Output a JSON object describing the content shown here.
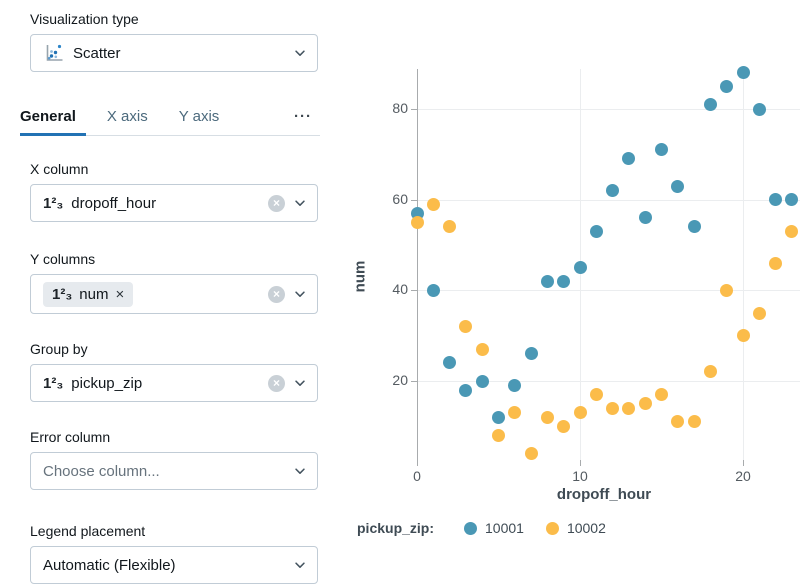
{
  "sidebar": {
    "visualization_type": {
      "label": "Visualization type",
      "value": "Scatter"
    },
    "tabs": [
      {
        "label": "General",
        "active": true
      },
      {
        "label": "X axis",
        "active": false
      },
      {
        "label": "Y axis",
        "active": false
      },
      {
        "label": "···",
        "active": false
      }
    ],
    "fields": {
      "x_column": {
        "label": "X column",
        "value": "dropoff_hour"
      },
      "y_columns": {
        "label": "Y columns",
        "chip": "num"
      },
      "group_by": {
        "label": "Group by",
        "value": "pickup_zip"
      },
      "error_column": {
        "label": "Error column",
        "placeholder": "Choose column..."
      },
      "legend_placement": {
        "label": "Legend placement",
        "value": "Automatic (Flexible)"
      }
    },
    "icons": {
      "number_type": "1²₃",
      "clear": "×",
      "chip_remove": "×",
      "more_tabs": "···"
    }
  },
  "colors": {
    "accent_blue": "#2272B4",
    "series_blue": "#4a98b5",
    "series_yellow": "#fbbc4a",
    "gridline": "#ebedef",
    "axis_line": "#a8abad"
  },
  "chart_data": {
    "type": "scatter",
    "title": "",
    "xlabel": "dropoff_hour",
    "ylabel": "num",
    "x_ticks": [
      0,
      10,
      20
    ],
    "y_ticks": [
      20,
      40,
      60,
      80
    ],
    "xlim": [
      -0.8,
      23.8
    ],
    "ylim": [
      2.5,
      89
    ],
    "grid": true,
    "legend_title": "pickup_zip:",
    "legend_position": "bottom",
    "series": [
      {
        "name": "10001",
        "color": "#4a98b5",
        "points": [
          [
            0,
            57
          ],
          [
            1,
            40
          ],
          [
            2,
            24
          ],
          [
            3,
            18
          ],
          [
            4,
            20
          ],
          [
            5,
            12
          ],
          [
            6,
            19
          ],
          [
            7,
            26
          ],
          [
            8,
            42
          ],
          [
            9,
            42
          ],
          [
            10,
            45
          ],
          [
            11,
            53
          ],
          [
            12,
            62
          ],
          [
            13,
            69
          ],
          [
            14,
            56
          ],
          [
            15,
            71
          ],
          [
            16,
            63
          ],
          [
            17,
            54
          ],
          [
            18,
            81
          ],
          [
            19,
            85
          ],
          [
            20,
            88
          ],
          [
            21,
            80
          ],
          [
            22,
            60
          ],
          [
            23,
            60
          ]
        ]
      },
      {
        "name": "10002",
        "color": "#fbbc4a",
        "points": [
          [
            0,
            55
          ],
          [
            1,
            59
          ],
          [
            2,
            54
          ],
          [
            3,
            32
          ],
          [
            4,
            27
          ],
          [
            5,
            8
          ],
          [
            6,
            13
          ],
          [
            7,
            4
          ],
          [
            8,
            12
          ],
          [
            9,
            10
          ],
          [
            10,
            13
          ],
          [
            11,
            17
          ],
          [
            12,
            14
          ],
          [
            13,
            14
          ],
          [
            14,
            15
          ],
          [
            15,
            17
          ],
          [
            16,
            11
          ],
          [
            17,
            11
          ],
          [
            18,
            22
          ],
          [
            19,
            40
          ],
          [
            20,
            30
          ],
          [
            21,
            35
          ],
          [
            22,
            46
          ],
          [
            23,
            53
          ]
        ]
      }
    ]
  }
}
